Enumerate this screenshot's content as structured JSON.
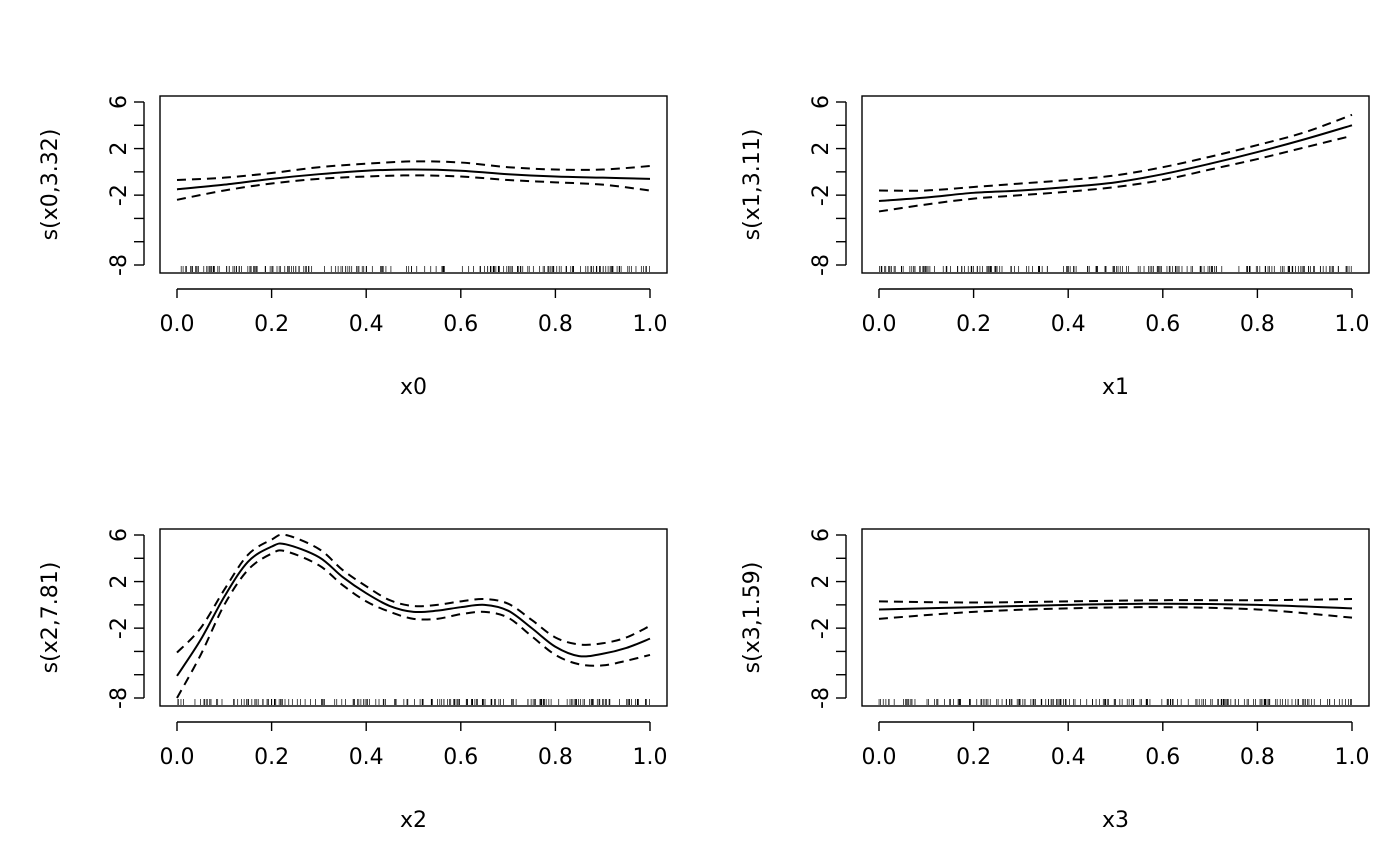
{
  "chart_data": [
    {
      "type": "line",
      "xlabel": "x0",
      "ylabel": "s(x0,3.32)",
      "xlim": [
        0.0,
        1.0
      ],
      "ylim": [
        -8,
        6
      ],
      "x_ticks": [
        "0.0",
        "0.2",
        "0.4",
        "0.6",
        "0.8",
        "1.0"
      ],
      "y_ticks": [
        "-8",
        "-2",
        "2",
        "6"
      ],
      "y_minor_ticks": [
        -6,
        -4,
        0,
        4
      ],
      "x": [
        0.0,
        0.1,
        0.2,
        0.3,
        0.4,
        0.5,
        0.6,
        0.7,
        0.8,
        0.9,
        1.0
      ],
      "series": [
        {
          "role": "estimate",
          "values": [
            -1.5,
            -1.1,
            -0.6,
            -0.2,
            0.1,
            0.2,
            0.1,
            -0.2,
            -0.4,
            -0.5,
            -0.6
          ]
        },
        {
          "role": "upper",
          "values": [
            -0.7,
            -0.5,
            -0.1,
            0.4,
            0.7,
            0.9,
            0.8,
            0.4,
            0.2,
            0.2,
            0.5
          ]
        },
        {
          "role": "lower",
          "values": [
            -2.4,
            -1.6,
            -1.0,
            -0.6,
            -0.4,
            -0.3,
            -0.4,
            -0.7,
            -0.9,
            -1.1,
            -1.6
          ]
        }
      ]
    },
    {
      "type": "line",
      "xlabel": "x1",
      "ylabel": "s(x1,3.11)",
      "xlim": [
        0.0,
        1.0
      ],
      "ylim": [
        -8,
        6
      ],
      "x_ticks": [
        "0.0",
        "0.2",
        "0.4",
        "0.6",
        "0.8",
        "1.0"
      ],
      "y_ticks": [
        "-8",
        "-2",
        "2",
        "6"
      ],
      "y_minor_ticks": [
        -6,
        -4,
        0,
        4
      ],
      "x": [
        0.0,
        0.1,
        0.2,
        0.3,
        0.4,
        0.5,
        0.6,
        0.7,
        0.8,
        0.9,
        1.0
      ],
      "series": [
        {
          "role": "estimate",
          "values": [
            -2.5,
            -2.2,
            -1.8,
            -1.6,
            -1.3,
            -0.9,
            -0.2,
            0.7,
            1.7,
            2.8,
            4.0
          ]
        },
        {
          "role": "upper",
          "values": [
            -1.6,
            -1.6,
            -1.3,
            -1.0,
            -0.7,
            -0.3,
            0.4,
            1.3,
            2.3,
            3.4,
            4.9
          ]
        },
        {
          "role": "lower",
          "values": [
            -3.4,
            -2.8,
            -2.3,
            -2.0,
            -1.7,
            -1.3,
            -0.7,
            0.2,
            1.1,
            2.1,
            3.1
          ]
        }
      ]
    },
    {
      "type": "line",
      "xlabel": "x2",
      "ylabel": "s(x2,7.81)",
      "xlim": [
        0.0,
        1.0
      ],
      "ylim": [
        -8,
        6
      ],
      "x_ticks": [
        "0.0",
        "0.2",
        "0.4",
        "0.6",
        "0.8",
        "1.0"
      ],
      "y_ticks": [
        "-8",
        "-2",
        "2",
        "6"
      ],
      "y_minor_ticks": [
        -6,
        -4,
        0,
        4
      ],
      "x": [
        0.0,
        0.05,
        0.1,
        0.15,
        0.2,
        0.23,
        0.3,
        0.35,
        0.4,
        0.45,
        0.5,
        0.55,
        0.6,
        0.65,
        0.7,
        0.75,
        0.8,
        0.85,
        0.9,
        0.95,
        1.0
      ],
      "series": [
        {
          "role": "estimate",
          "values": [
            -6.1,
            -3.0,
            0.7,
            3.7,
            5.0,
            5.2,
            4.1,
            2.4,
            1.0,
            -0.1,
            -0.6,
            -0.5,
            -0.2,
            0.0,
            -0.5,
            -2.0,
            -3.6,
            -4.4,
            -4.2,
            -3.7,
            -2.9
          ]
        },
        {
          "role": "upper",
          "values": [
            -4.1,
            -2.0,
            1.3,
            4.3,
            5.6,
            6.0,
            4.8,
            3.0,
            1.6,
            0.4,
            -0.1,
            0.0,
            0.3,
            0.5,
            0.1,
            -1.3,
            -2.8,
            -3.4,
            -3.3,
            -2.8,
            -1.8
          ]
        },
        {
          "role": "lower",
          "values": [
            -8.0,
            -4.3,
            0.0,
            3.0,
            4.4,
            4.6,
            3.4,
            1.7,
            0.3,
            -0.6,
            -1.2,
            -1.2,
            -0.8,
            -0.6,
            -1.1,
            -2.7,
            -4.3,
            -5.1,
            -5.2,
            -4.8,
            -4.3
          ]
        }
      ]
    },
    {
      "type": "line",
      "xlabel": "x3",
      "ylabel": "s(x3,1.59)",
      "xlim": [
        0.0,
        1.0
      ],
      "ylim": [
        -8,
        6
      ],
      "x_ticks": [
        "0.0",
        "0.2",
        "0.4",
        "0.6",
        "0.8",
        "1.0"
      ],
      "y_ticks": [
        "-8",
        "-2",
        "2",
        "6"
      ],
      "y_minor_ticks": [
        -6,
        -4,
        0,
        4
      ],
      "x": [
        0.0,
        0.2,
        0.4,
        0.6,
        0.8,
        1.0
      ],
      "series": [
        {
          "role": "estimate",
          "values": [
            -0.4,
            -0.2,
            0.0,
            0.1,
            0.0,
            -0.3
          ]
        },
        {
          "role": "upper",
          "values": [
            0.3,
            0.2,
            0.3,
            0.4,
            0.4,
            0.5
          ]
        },
        {
          "role": "lower",
          "values": [
            -1.2,
            -0.6,
            -0.3,
            -0.2,
            -0.4,
            -1.1
          ]
        }
      ]
    }
  ]
}
